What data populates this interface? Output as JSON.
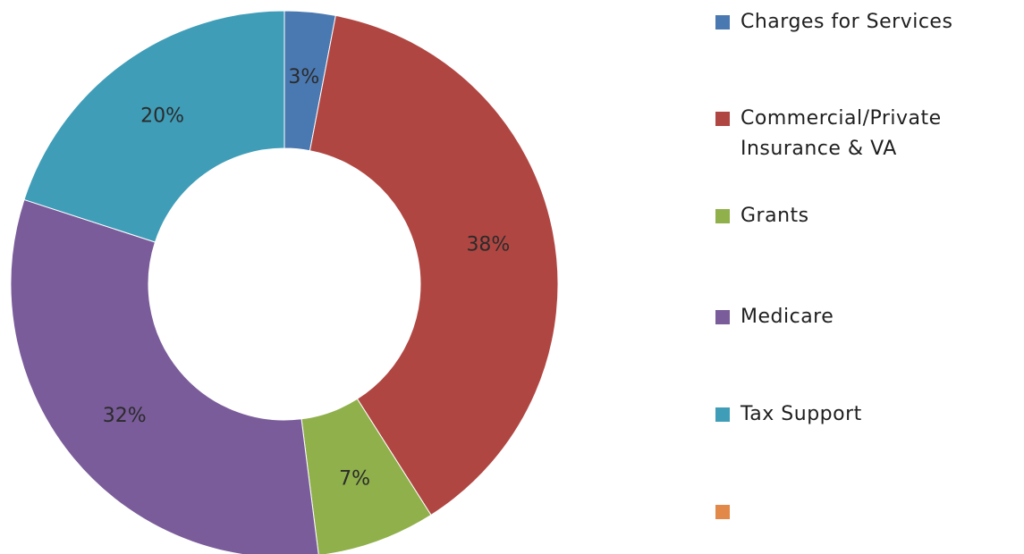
{
  "chart_data": {
    "type": "pie",
    "donut": true,
    "slices": [
      {
        "label": "Charges for Services",
        "value": 3,
        "display": "3%",
        "color": "#4a78b0"
      },
      {
        "label": "Commercial/Private Insurance & VA",
        "value": 38,
        "display": "38%",
        "color": "#b04642"
      },
      {
        "label": "Grants",
        "value": 7,
        "display": "7%",
        "color": "#8fb04a"
      },
      {
        "label": "Medicare",
        "value": 32,
        "display": "32%",
        "color": "#7a5c9a"
      },
      {
        "label": "Tax Support",
        "value": 20,
        "display": "20%",
        "color": "#3f9db8"
      }
    ],
    "legend": {
      "placement": "right",
      "entries": [
        {
          "label": "Charges for Services",
          "color": "#4a78b0"
        },
        {
          "label": "Commercial/Private Insurance & VA",
          "color": "#b04642"
        },
        {
          "label": "Grants",
          "color": "#8fb04a"
        },
        {
          "label": "Medicare",
          "color": "#7a5c9a"
        },
        {
          "label": "Tax Support",
          "color": "#3f9db8"
        },
        {
          "label": "",
          "color": "#e2894a"
        }
      ]
    }
  }
}
